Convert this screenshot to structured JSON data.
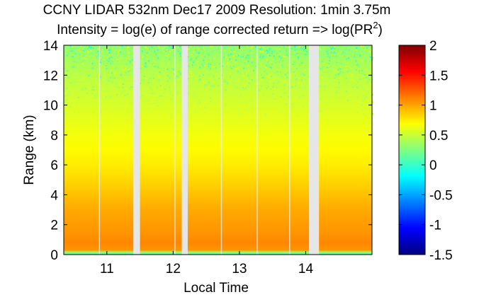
{
  "chart_data": {
    "type": "heatmap",
    "title": "CCNY LIDAR 532nm Dec17 2009 Resolution: 1min 3.75m",
    "subtitle": "Intensity = log(e) of range corrected return => log(PR",
    "subtitle_sup": "2",
    "subtitle_end": ")",
    "xlabel": "Local Time",
    "ylabel": "Range (km)",
    "xlim": [
      10.35,
      15.0
    ],
    "ylim": [
      0,
      14
    ],
    "xticks": [
      11,
      12,
      13,
      14
    ],
    "xtick_labels": [
      "11",
      "12",
      "13",
      "14"
    ],
    "yticks": [
      0,
      2,
      4,
      6,
      8,
      10,
      12,
      14
    ],
    "ytick_labels": [
      "0",
      "2",
      "4",
      "6",
      "8",
      "10",
      "12",
      "14"
    ],
    "colorbar": {
      "colormap": "jet",
      "clim": [
        -1.5,
        2
      ],
      "ticks": [
        2,
        1.5,
        1,
        0.5,
        0,
        -0.5,
        -1,
        -1.5
      ],
      "tick_labels": [
        "2",
        "1.5",
        "1",
        "0.5",
        "0",
        "-0.5",
        "-1",
        "-1.5"
      ]
    },
    "range_profile_km": [
      0,
      0.15,
      0.3,
      0.8,
      1.5,
      3,
      4,
      5,
      6,
      7,
      8,
      10,
      12,
      14
    ],
    "range_profile_value": [
      0.2,
      0.35,
      1.05,
      1.1,
      1.05,
      0.98,
      0.9,
      0.82,
      0.75,
      0.7,
      0.65,
      0.55,
      0.45,
      0.3
    ],
    "data_gaps": [
      {
        "start": 11.4,
        "end": 11.5
      },
      {
        "start": 12.13,
        "end": 12.22
      },
      {
        "start": 14.05,
        "end": 14.2
      }
    ],
    "grid": false
  }
}
